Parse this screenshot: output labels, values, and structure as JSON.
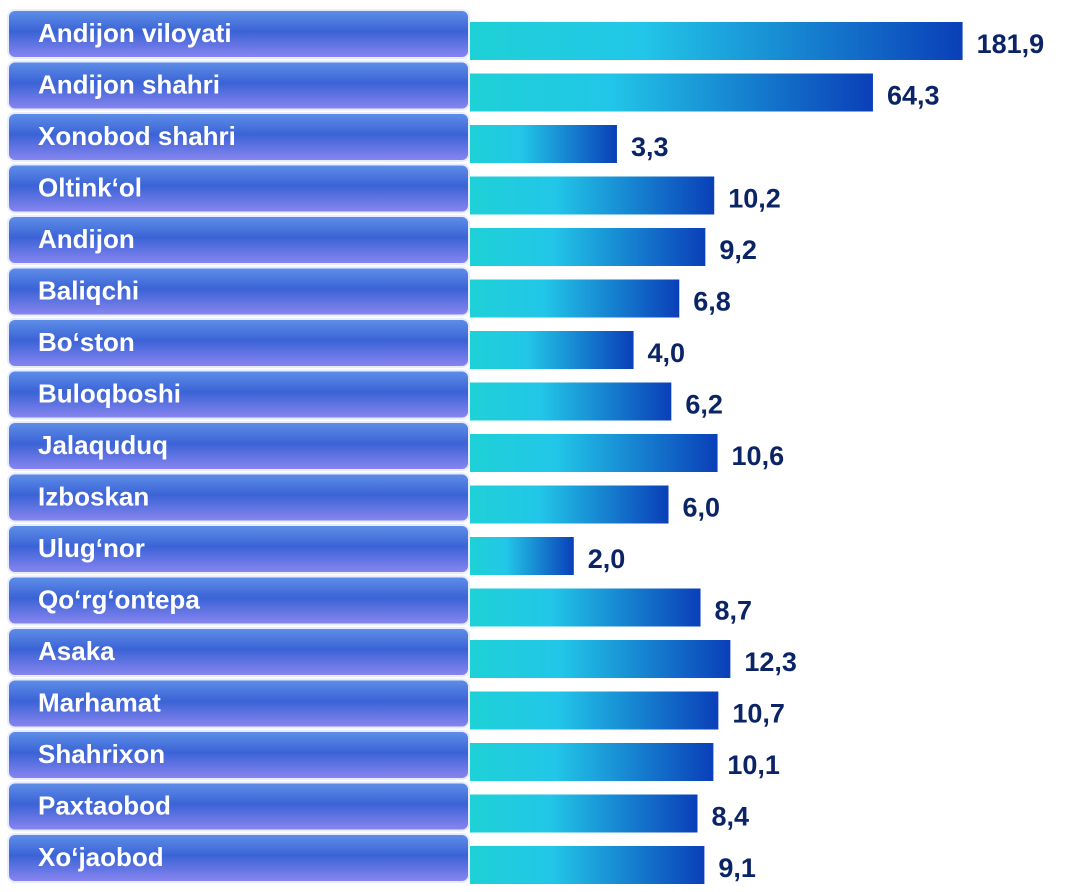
{
  "chart_data": {
    "type": "bar",
    "orientation": "horizontal",
    "log_scale": true,
    "xlim": [
      0.6,
      250
    ],
    "color": "#0a4fc4",
    "categories": [
      "Andijon viloyati",
      "Andijon  shahri",
      "Xonobod shahri",
      "Oltink‘ol",
      "Andijon",
      "Baliqchi",
      "Bo‘ston",
      "Buloqboshi",
      "Jalaquduq",
      "Izboskan",
      "Ulug‘nor",
      "Qo‘rg‘ontepa",
      "Asaka",
      "Marhamat",
      "Shahrixon",
      "Paxtaobod",
      "Xo‘jaobod"
    ],
    "values": [
      181.9,
      64.3,
      3.3,
      10.2,
      9.2,
      6.8,
      4.0,
      6.2,
      10.6,
      6.0,
      2.0,
      8.7,
      12.3,
      10.7,
      10.1,
      8.4,
      9.1
    ],
    "value_labels": [
      "181,9",
      "64,3",
      "3,3",
      "10,2",
      "9,2",
      "6,8",
      "4,0",
      "6,2",
      "10,6",
      "6,0",
      "2,0",
      "8,7",
      "12,3",
      "10,7",
      "10,1",
      "8,4",
      "9,1"
    ]
  }
}
